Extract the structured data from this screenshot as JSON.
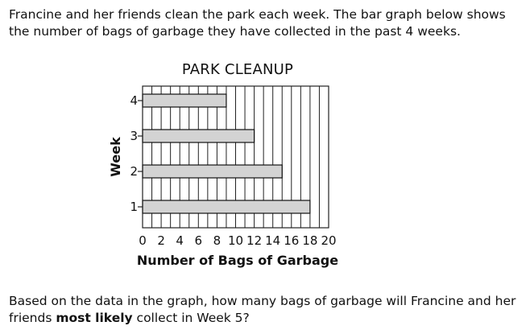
{
  "intro_text": "Francine and her friends clean the park each week. The bar graph below shows the number of bags of garbage they have collected in the past 4 weeks.",
  "question": {
    "part1": "Based on the data in the graph, how many bags of garbage will Francine and her friends ",
    "emphasis": "most likely",
    "part2": " collect in Week 5?"
  },
  "chart_data": {
    "type": "bar",
    "orientation": "horizontal",
    "title": "PARK CLEANUP",
    "xlabel": "Number of Bags of Garbage",
    "ylabel": "Week",
    "categories": [
      "1",
      "2",
      "3",
      "4"
    ],
    "values": [
      18,
      15,
      12,
      9
    ],
    "xlim": [
      0,
      20
    ],
    "x_ticks": [
      "0",
      "2",
      "4",
      "6",
      "8",
      "10",
      "12",
      "14",
      "16",
      "18",
      "20"
    ],
    "grid": true,
    "bar_color": "#d3d3d3"
  }
}
